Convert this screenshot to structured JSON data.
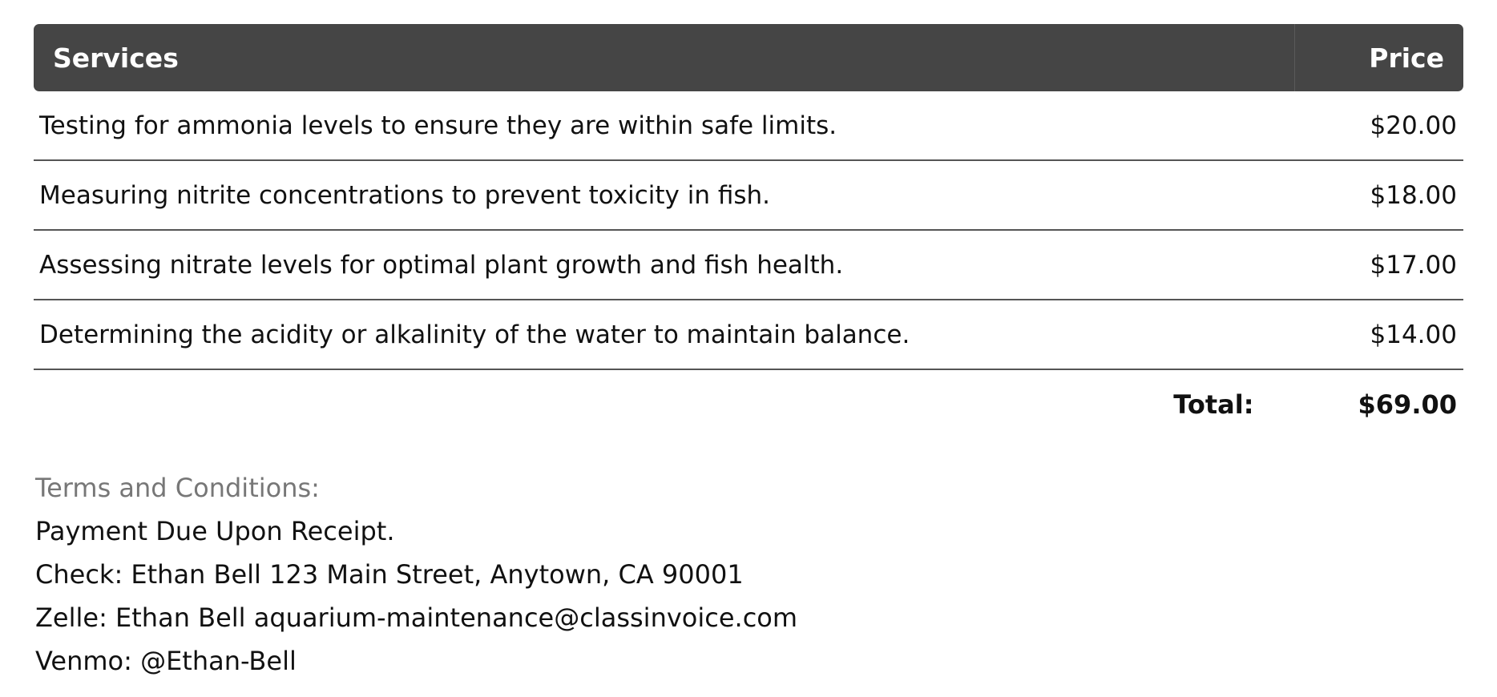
{
  "table": {
    "headers": {
      "services": "Services",
      "price": "Price"
    },
    "rows": [
      {
        "description": "Testing for ammonia levels to ensure they are within safe limits.",
        "price": "$20.00"
      },
      {
        "description": "Measuring nitrite concentrations to prevent toxicity in fish.",
        "price": "$18.00"
      },
      {
        "description": "Assessing nitrate levels for optimal plant growth and fish health.",
        "price": "$17.00"
      },
      {
        "description": "Determining the acidity or alkalinity of the water to maintain balance.",
        "price": "$14.00"
      }
    ],
    "total_label": "Total:",
    "total_value": "$69.00"
  },
  "terms": {
    "title": "Terms and Conditions:",
    "lines": [
      "Payment Due Upon Receipt.",
      "Check: Ethan Bell 123 Main Street, Anytown, CA 90001",
      "Zelle: Ethan Bell aquarium-maintenance@classinvoice.com",
      "Venmo: @Ethan-Bell"
    ]
  },
  "colors": {
    "header_bg": "#454545"
  }
}
